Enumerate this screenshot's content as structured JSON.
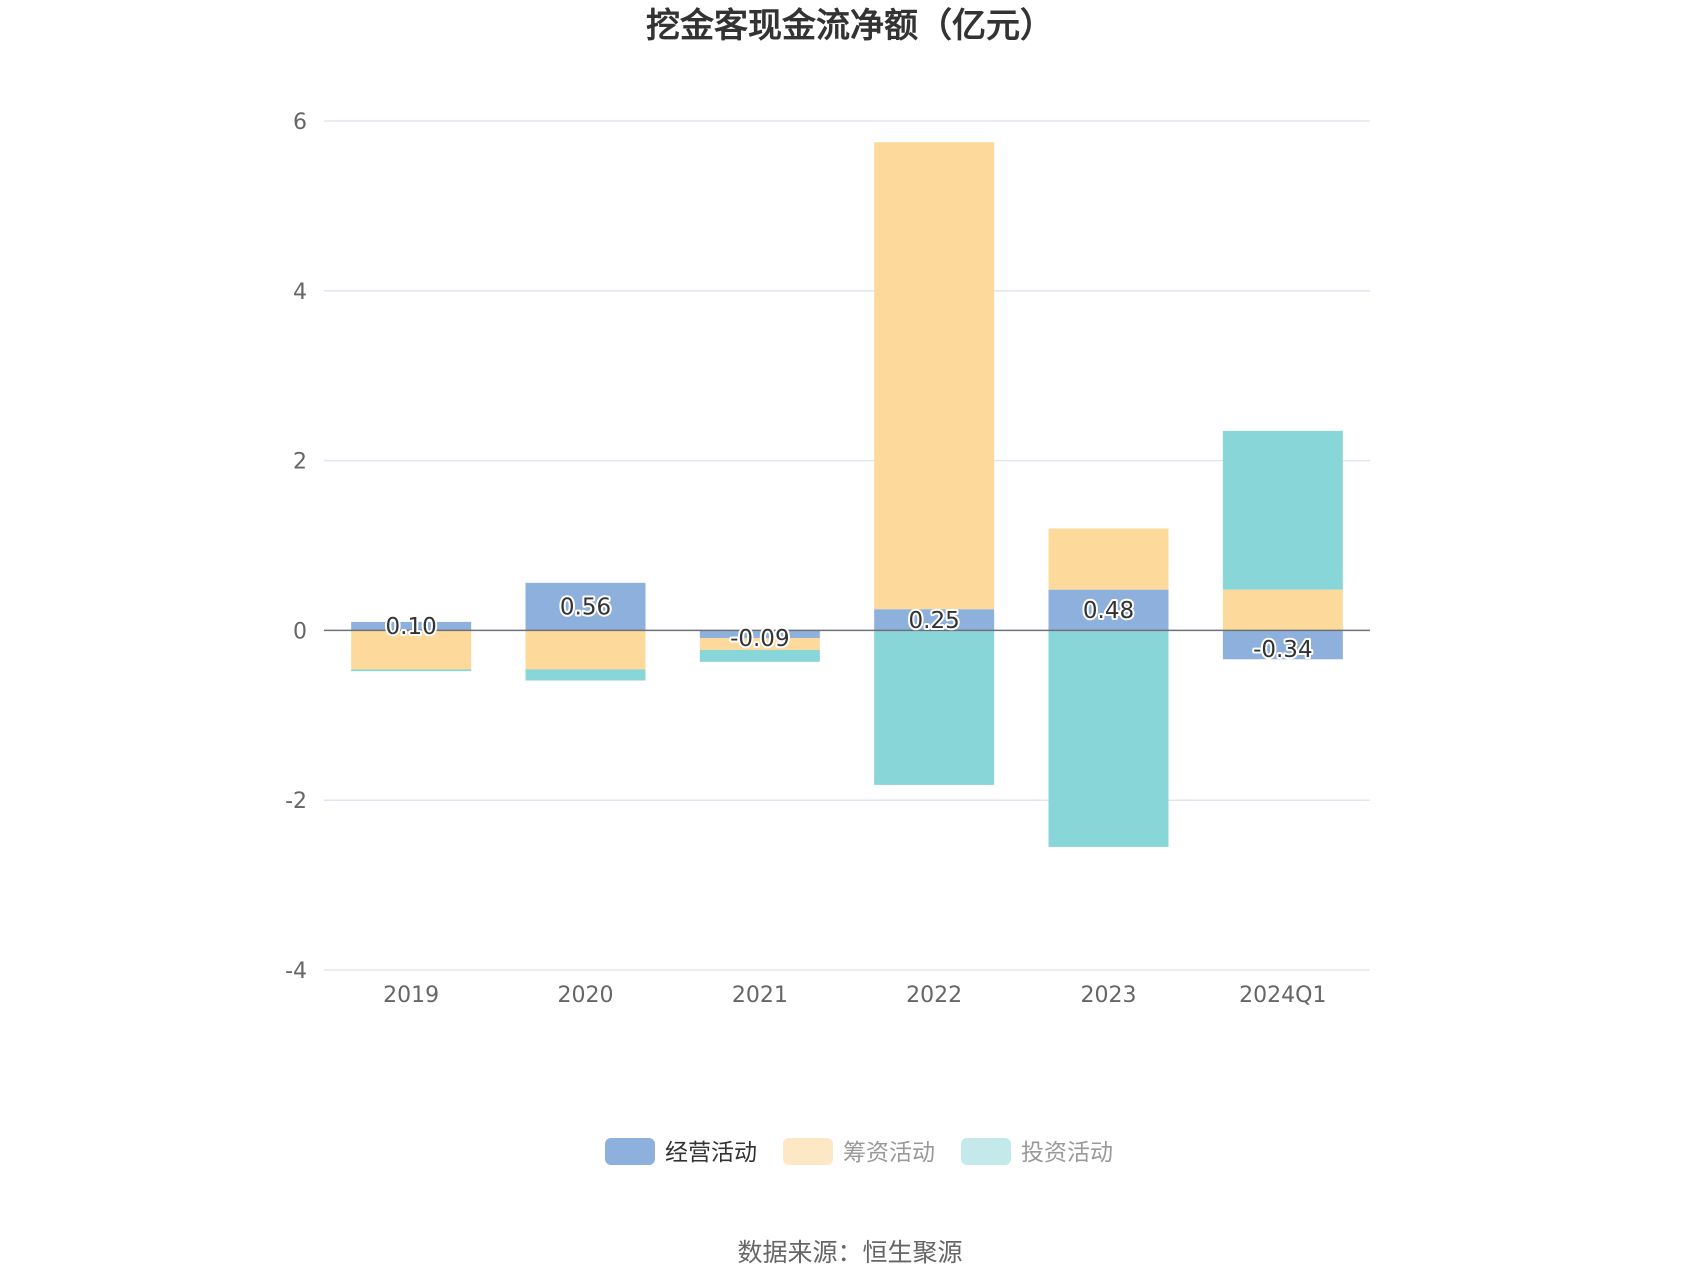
{
  "chart_data": {
    "type": "bar",
    "stacked": true,
    "title": "挖金客现金流净额（亿元）",
    "categories": [
      "2019",
      "2020",
      "2021",
      "2022",
      "2023",
      "2024Q1"
    ],
    "ylim": [
      -4,
      6
    ],
    "yticks": [
      6,
      4,
      2,
      0,
      -2,
      -4
    ],
    "series": [
      {
        "name": "经营活动",
        "color": "#8eb0dc",
        "values": [
          0.1,
          0.56,
          -0.09,
          0.25,
          0.48,
          -0.34
        ],
        "labels": [
          "0.10",
          "0.56",
          "-0.09",
          "0.25",
          "0.48",
          "-0.34"
        ]
      },
      {
        "name": "筹资活动",
        "color": "#fdd99b",
        "values": [
          -0.46,
          -0.46,
          -0.14,
          5.5,
          0.72,
          0.48
        ]
      },
      {
        "name": "投资活动",
        "color": "#89d6d8",
        "values": [
          -0.02,
          -0.13,
          -0.14,
          -1.82,
          -2.55,
          1.87
        ]
      }
    ],
    "legend": {
      "position": "bottom",
      "items": [
        {
          "name": "经营活动",
          "color": "#8eb0dc",
          "active": true
        },
        {
          "name": "筹资活动",
          "color": "#fde8c6",
          "active": false
        },
        {
          "name": "投资活动",
          "color": "#c3e9ea",
          "active": false
        }
      ]
    },
    "grid": true,
    "source": "数据来源：恒生聚源"
  }
}
